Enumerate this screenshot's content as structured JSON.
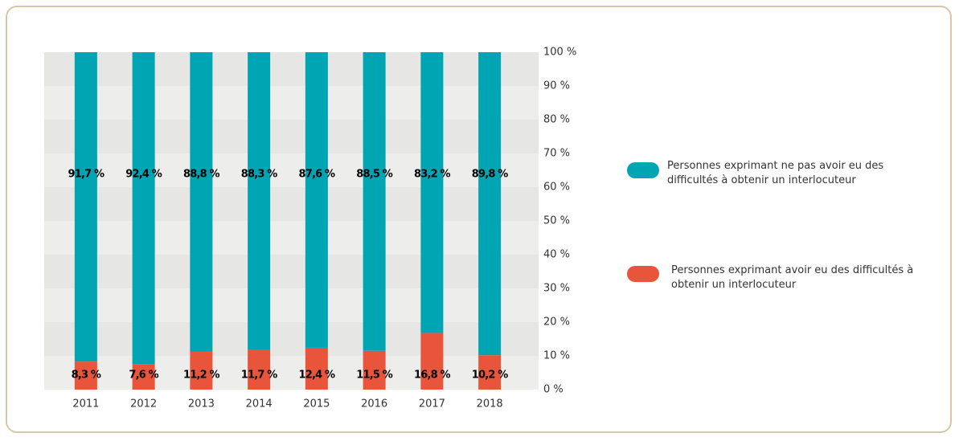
{
  "chart_data": {
    "type": "stacked_bar",
    "categories": [
      "2011",
      "2012",
      "2013",
      "2014",
      "2015",
      "2016",
      "2017",
      "2018"
    ],
    "series": [
      {
        "name": "Personnes exprimant ne pas avoir eu des difficultés à obtenir un interlocuteur",
        "color": "#00a5b3",
        "values": [
          91.7,
          92.4,
          88.8,
          88.3,
          87.6,
          88.5,
          83.2,
          89.8
        ],
        "value_labels": [
          "91,7 %",
          "92,4 %",
          "88,8 %",
          "88,3 %",
          "87,6 %",
          "88,5 %",
          "83,2 %",
          "89,8 %"
        ]
      },
      {
        "name": "Personnes exprimant avoir eu des difficultés à obtenir un interlocuteur",
        "color": "#e8553a",
        "values": [
          8.3,
          7.6,
          11.2,
          11.7,
          12.4,
          11.5,
          16.8,
          10.2
        ],
        "value_labels": [
          "8,3 %",
          "7,6 %",
          "11,2 %",
          "11,7 %",
          "12,4 %",
          "11,5 %",
          "16,8 %",
          "10,2 %"
        ]
      }
    ],
    "ylim": [
      0,
      100
    ],
    "yticks": [
      {
        "value": 0,
        "label": "0 %"
      },
      {
        "value": 10,
        "label": "10 %"
      },
      {
        "value": 20,
        "label": "20 %"
      },
      {
        "value": 30,
        "label": "30 %"
      },
      {
        "value": 40,
        "label": "40 %"
      },
      {
        "value": 50,
        "label": "50 %"
      },
      {
        "value": 60,
        "label": "60 %"
      },
      {
        "value": 70,
        "label": "70 %"
      },
      {
        "value": 80,
        "label": "80 %"
      },
      {
        "value": 90,
        "label": "90 %"
      },
      {
        "value": 100,
        "label": "100 %"
      }
    ],
    "grid": true
  }
}
